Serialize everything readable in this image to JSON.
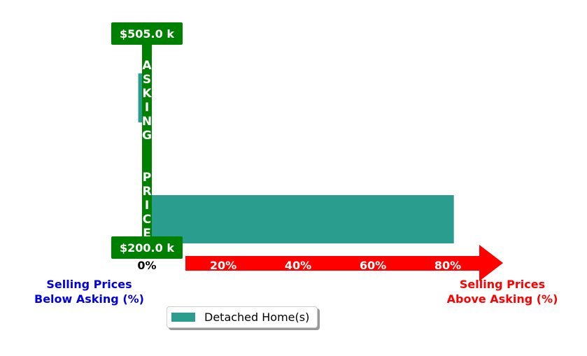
{
  "chart_data": {
    "type": "bar",
    "orientation": "horizontal",
    "series": [
      {
        "name": "Detached Home(s)",
        "color": "#2a9d8f",
        "bars": [
          {
            "direction": "below_asking",
            "value": 1.5
          },
          {
            "direction": "above_asking",
            "value": 82
          }
        ]
      }
    ],
    "ticks": [
      "0%",
      "20%",
      "40%",
      "60%",
      "80%"
    ],
    "tick_values": [
      0,
      20,
      40,
      60,
      80
    ],
    "asking_price_label": "A S K I N G   P R I C E",
    "price_top": "$505.0 k",
    "price_bottom": "$200.0 k",
    "left_label_line1": "Selling Prices",
    "left_label_line2": "Below Asking (%)",
    "right_label_line1": "Selling Prices",
    "right_label_line2": "Above Asking (%)",
    "legend_entry": "Detached Home(s)",
    "colors": {
      "bar": "#2a9d8f",
      "asking": "#008000",
      "arrow": "#ff0000",
      "below": "#0000e0",
      "above": "#ff0000"
    }
  }
}
